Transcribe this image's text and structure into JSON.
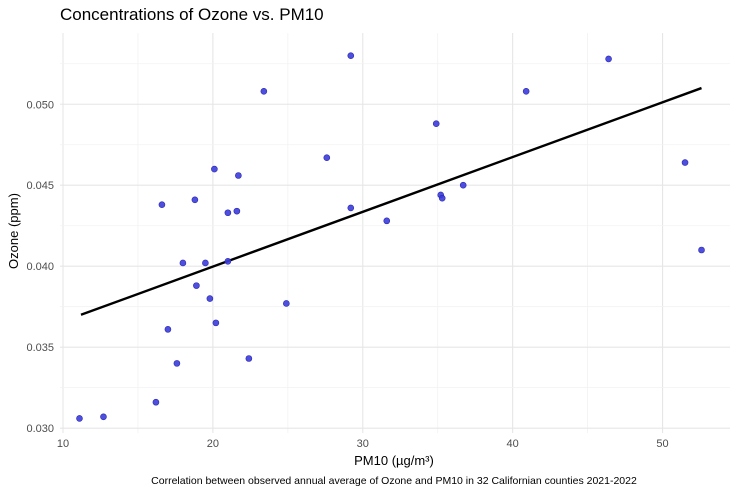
{
  "chart_data": {
    "type": "scatter",
    "title": "Concentrations of Ozone vs. PM10",
    "xlabel": "PM10 (µg/m³)",
    "ylabel": "Ozone (ppm)",
    "caption": "Correlation between observed annual average of Ozone and PM10 in 32 Californian counties 2021-2022",
    "xlim": [
      9.8,
      54.5
    ],
    "ylim": [
      0.0297,
      0.0544
    ],
    "xticks": [
      10,
      20,
      30,
      40,
      50
    ],
    "yticks": [
      0.03,
      0.035,
      0.04,
      0.045,
      0.05
    ],
    "ytick_labels": [
      "0.030",
      "0.035",
      "0.040",
      "0.045",
      "0.050"
    ],
    "grid": true,
    "point_color": "#3b3bdb",
    "line_color": "#000000",
    "points": [
      {
        "x": 11.1,
        "y": 0.0306
      },
      {
        "x": 12.7,
        "y": 0.0307
      },
      {
        "x": 16.2,
        "y": 0.0316
      },
      {
        "x": 16.6,
        "y": 0.0438
      },
      {
        "x": 17.0,
        "y": 0.0361
      },
      {
        "x": 17.6,
        "y": 0.034
      },
      {
        "x": 18.0,
        "y": 0.0402
      },
      {
        "x": 18.8,
        "y": 0.0441
      },
      {
        "x": 18.9,
        "y": 0.0388
      },
      {
        "x": 19.5,
        "y": 0.0402
      },
      {
        "x": 19.8,
        "y": 0.038
      },
      {
        "x": 20.1,
        "y": 0.046
      },
      {
        "x": 20.2,
        "y": 0.0365
      },
      {
        "x": 21.0,
        "y": 0.0433
      },
      {
        "x": 21.0,
        "y": 0.0403
      },
      {
        "x": 21.6,
        "y": 0.0434
      },
      {
        "x": 21.7,
        "y": 0.0456
      },
      {
        "x": 22.4,
        "y": 0.0343
      },
      {
        "x": 23.4,
        "y": 0.0508
      },
      {
        "x": 24.9,
        "y": 0.0377
      },
      {
        "x": 27.6,
        "y": 0.0467
      },
      {
        "x": 29.2,
        "y": 0.053
      },
      {
        "x": 29.2,
        "y": 0.0436
      },
      {
        "x": 31.6,
        "y": 0.0428
      },
      {
        "x": 34.9,
        "y": 0.0488
      },
      {
        "x": 35.2,
        "y": 0.0444
      },
      {
        "x": 35.3,
        "y": 0.0442
      },
      {
        "x": 36.7,
        "y": 0.045
      },
      {
        "x": 40.9,
        "y": 0.0508
      },
      {
        "x": 46.4,
        "y": 0.0528
      },
      {
        "x": 51.5,
        "y": 0.0464
      },
      {
        "x": 52.6,
        "y": 0.041
      }
    ],
    "trend_line": {
      "x": [
        11.2,
        52.6
      ],
      "y": [
        0.037,
        0.051
      ]
    }
  }
}
